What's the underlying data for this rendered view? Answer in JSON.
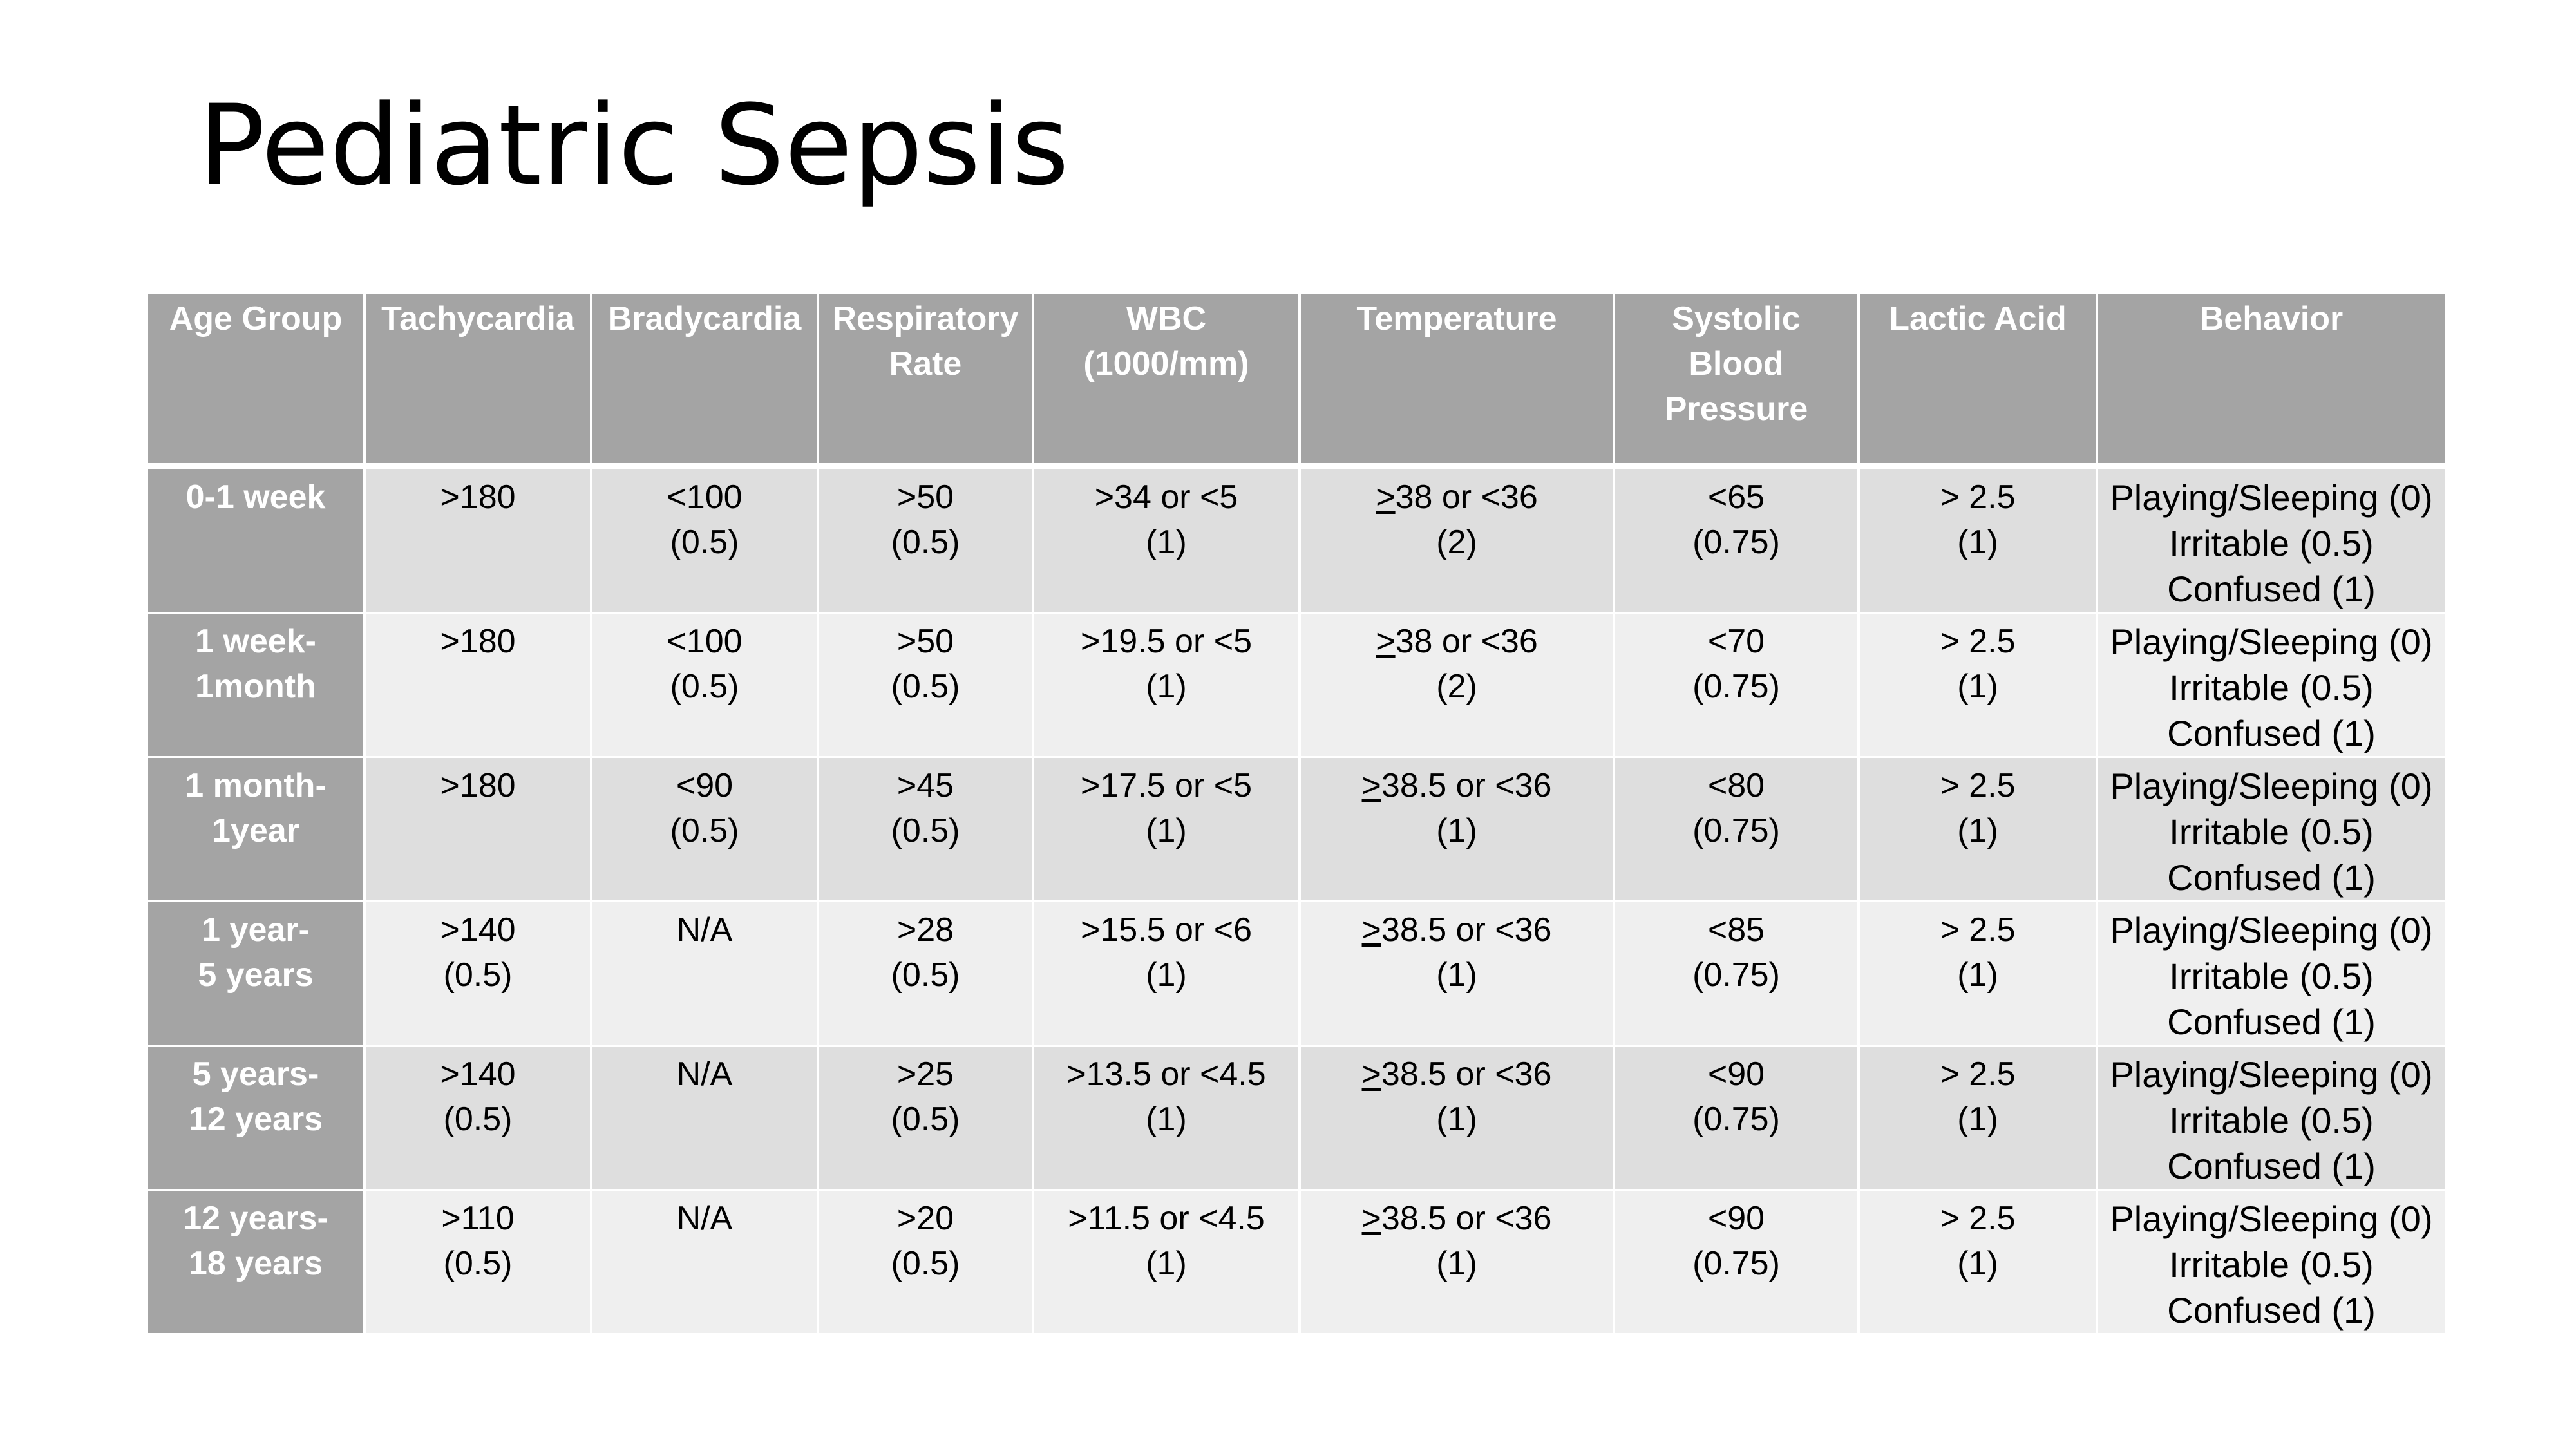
{
  "title": "Pediatric Sepsis",
  "columns": [
    {
      "key": "age_group",
      "lines": [
        "Age Group"
      ]
    },
    {
      "key": "tachycardia",
      "lines": [
        "Tachycardia"
      ]
    },
    {
      "key": "bradycardia",
      "lines": [
        "Bradycardia"
      ]
    },
    {
      "key": "respiratory_rate",
      "lines": [
        "Respiratory",
        "Rate"
      ]
    },
    {
      "key": "wbc",
      "lines": [
        "WBC",
        "(1000/mm)"
      ]
    },
    {
      "key": "temperature",
      "lines": [
        "Temperature"
      ]
    },
    {
      "key": "systolic_bp",
      "lines": [
        "Systolic",
        "Blood",
        "Pressure"
      ]
    },
    {
      "key": "lactic_acid",
      "lines": [
        "Lactic Acid"
      ]
    },
    {
      "key": "behavior",
      "lines": [
        "Behavior"
      ]
    }
  ],
  "rows": [
    {
      "age_group": [
        "0-1 week"
      ],
      "tachycardia": [
        ">180"
      ],
      "bradycardia": [
        "<100",
        "(0.5)"
      ],
      "respiratory_rate": [
        ">50",
        "(0.5)"
      ],
      "wbc": [
        ">34 or <5",
        "(1)"
      ],
      "temperature": {
        "mark": ">",
        "rest": "38 or <36",
        "score": "(2)"
      },
      "systolic_bp": [
        "<65",
        "(0.75)"
      ],
      "lactic_acid": [
        "> 2.5",
        "(1)"
      ],
      "behavior": [
        "Playing/Sleeping (0)",
        "Irritable (0.5)",
        "Confused (1)"
      ]
    },
    {
      "age_group": [
        "1 week-",
        "1month"
      ],
      "tachycardia": [
        ">180"
      ],
      "bradycardia": [
        "<100",
        "(0.5)"
      ],
      "respiratory_rate": [
        ">50",
        "(0.5)"
      ],
      "wbc": [
        ">19.5 or <5",
        "(1)"
      ],
      "temperature": {
        "mark": ">",
        "rest": "38 or <36",
        "score": "(2)"
      },
      "systolic_bp": [
        "<70",
        "(0.75)"
      ],
      "lactic_acid": [
        "> 2.5",
        "(1)"
      ],
      "behavior": [
        "Playing/Sleeping (0)",
        "Irritable (0.5)",
        "Confused (1)"
      ]
    },
    {
      "age_group": [
        "1 month-",
        "1year"
      ],
      "tachycardia": [
        ">180"
      ],
      "bradycardia": [
        "<90",
        "(0.5)"
      ],
      "respiratory_rate": [
        ">45",
        "(0.5)"
      ],
      "wbc": [
        ">17.5 or <5",
        "(1)"
      ],
      "temperature": {
        "mark": ">",
        "rest": "38.5 or <36",
        "score": "(1)"
      },
      "systolic_bp": [
        "<80",
        "(0.75)"
      ],
      "lactic_acid": [
        "> 2.5",
        "(1)"
      ],
      "behavior": [
        "Playing/Sleeping (0)",
        "Irritable (0.5)",
        "Confused (1)"
      ]
    },
    {
      "age_group": [
        "1 year-",
        "5 years"
      ],
      "tachycardia": [
        ">140",
        "(0.5)"
      ],
      "bradycardia": [
        "N/A"
      ],
      "respiratory_rate": [
        ">28",
        "(0.5)"
      ],
      "wbc": [
        ">15.5 or <6",
        "(1)"
      ],
      "temperature": {
        "mark": ">",
        "rest": "38.5 or <36",
        "score": "(1)"
      },
      "systolic_bp": [
        "<85",
        "(0.75)"
      ],
      "lactic_acid": [
        "> 2.5",
        "(1)"
      ],
      "behavior": [
        "Playing/Sleeping (0)",
        "Irritable (0.5)",
        "Confused (1)"
      ]
    },
    {
      "age_group": [
        "5 years-",
        "12 years"
      ],
      "tachycardia": [
        ">140",
        "(0.5)"
      ],
      "bradycardia": [
        "N/A"
      ],
      "respiratory_rate": [
        ">25",
        "(0.5)"
      ],
      "wbc": [
        ">13.5 or <4.5",
        "(1)"
      ],
      "temperature": {
        "mark": ">",
        "rest": "38.5 or <36",
        "score": "(1)"
      },
      "systolic_bp": [
        "<90",
        "(0.75)"
      ],
      "lactic_acid": [
        "> 2.5",
        "(1)"
      ],
      "behavior": [
        "Playing/Sleeping (0)",
        "Irritable (0.5)",
        "Confused (1)"
      ]
    },
    {
      "age_group": [
        "12 years-",
        "18 years"
      ],
      "tachycardia": [
        ">110",
        "(0.5)"
      ],
      "bradycardia": [
        "N/A"
      ],
      "respiratory_rate": [
        ">20",
        "(0.5)"
      ],
      "wbc": [
        ">11.5 or <4.5",
        "(1)"
      ],
      "temperature": {
        "mark": ">",
        "rest": "38.5 or <36",
        "score": "(1)"
      },
      "systolic_bp": [
        "<90",
        "(0.75)"
      ],
      "lactic_acid": [
        "> 2.5",
        "(1)"
      ],
      "behavior": [
        "Playing/Sleeping (0)",
        "Irritable (0.5)",
        "Confused (1)"
      ]
    }
  ]
}
